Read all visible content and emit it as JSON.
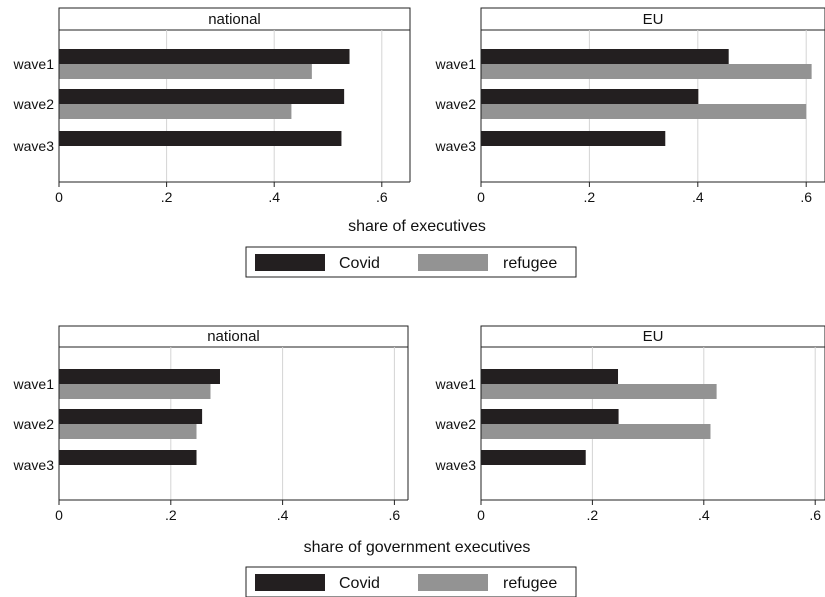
{
  "colors": {
    "Covid": "#231f20",
    "refugee": "#939393"
  },
  "chart_data": [
    {
      "type": "bar",
      "orientation": "horizontal",
      "panel": "national",
      "categories": [
        "wave1",
        "wave2",
        "wave3"
      ],
      "series": [
        {
          "name": "Covid",
          "values": [
            0.54,
            0.53,
            0.525
          ]
        },
        {
          "name": "refugee",
          "values": [
            0.47,
            0.432,
            null
          ]
        }
      ],
      "xlim": [
        0,
        0.64
      ],
      "xticks": [
        "0",
        ".2",
        ".4",
        ".6"
      ],
      "xlabel": "share of executives",
      "grid": true
    },
    {
      "type": "bar",
      "orientation": "horizontal",
      "panel": "EU",
      "categories": [
        "wave1",
        "wave2",
        "wave3"
      ],
      "series": [
        {
          "name": "Covid",
          "values": [
            0.457,
            0.401,
            0.34
          ]
        },
        {
          "name": "refugee",
          "values": [
            0.61,
            0.6,
            null
          ]
        }
      ],
      "xlim": [
        0,
        0.64
      ],
      "xticks": [
        "0",
        ".2",
        ".4",
        ".6"
      ],
      "xlabel": "share of executives",
      "grid": true
    },
    {
      "type": "bar",
      "orientation": "horizontal",
      "panel": "national",
      "categories": [
        "wave1",
        "wave2",
        "wave3"
      ],
      "series": [
        {
          "name": "Covid",
          "values": [
            0.288,
            0.256,
            0.246
          ]
        },
        {
          "name": "refugee",
          "values": [
            0.271,
            0.246,
            null
          ]
        }
      ],
      "xlim": [
        0,
        0.64
      ],
      "xticks": [
        "0",
        ".2",
        ".4",
        ".6"
      ],
      "xlabel": "share of government executives",
      "grid": true
    },
    {
      "type": "bar",
      "orientation": "horizontal",
      "panel": "EU",
      "categories": [
        "wave1",
        "wave2",
        "wave3"
      ],
      "series": [
        {
          "name": "Covid",
          "values": [
            0.246,
            0.247,
            0.188
          ]
        },
        {
          "name": "refugee",
          "values": [
            0.423,
            0.412,
            null
          ]
        }
      ],
      "xlim": [
        0,
        0.64
      ],
      "xticks": [
        "0",
        ".2",
        ".4",
        ".6"
      ],
      "xlabel": "share of government executives",
      "grid": true
    }
  ],
  "figures": [
    {
      "xlabel": "share of executives",
      "legend": [
        "Covid",
        "refugee"
      ]
    },
    {
      "xlabel": "share of government executives",
      "legend": [
        "Covid",
        "refugee"
      ]
    }
  ]
}
